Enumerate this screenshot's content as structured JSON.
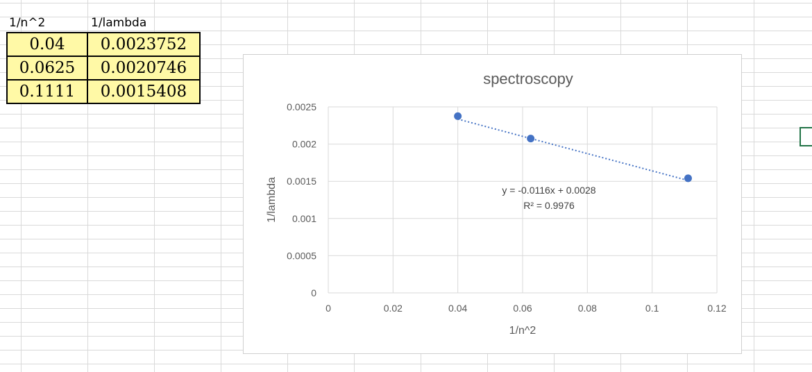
{
  "sheet": {
    "headers": [
      "1/n^2",
      "1/lambda"
    ],
    "rows": [
      [
        "0.04",
        "0.0023752"
      ],
      [
        "0.0625",
        "0.0020746"
      ],
      [
        "0.1111",
        "0.0015408"
      ]
    ]
  },
  "chart_data": {
    "type": "scatter",
    "title": "spectroscopy",
    "xlabel": "1/n^2",
    "ylabel": "1/lambda",
    "x": [
      0.04,
      0.0625,
      0.1111
    ],
    "y": [
      0.0023752,
      0.0020746,
      0.0015408
    ],
    "xlim": [
      0,
      0.12
    ],
    "ylim": [
      0,
      0.0025
    ],
    "xticks": [
      "0",
      "0.02",
      "0.04",
      "0.06",
      "0.08",
      "0.1",
      "0.12"
    ],
    "yticks": [
      "0",
      "0.0005",
      "0.001",
      "0.0015",
      "0.002",
      "0.0025"
    ],
    "trendline": {
      "type": "linear",
      "style": "dotted",
      "slope": -0.0116,
      "intercept": 0.0028
    },
    "annotations": [
      "y = -0.0116x + 0.0028",
      "R² = 0.9976"
    ],
    "grid": true,
    "marker_color": "#4472c4"
  }
}
